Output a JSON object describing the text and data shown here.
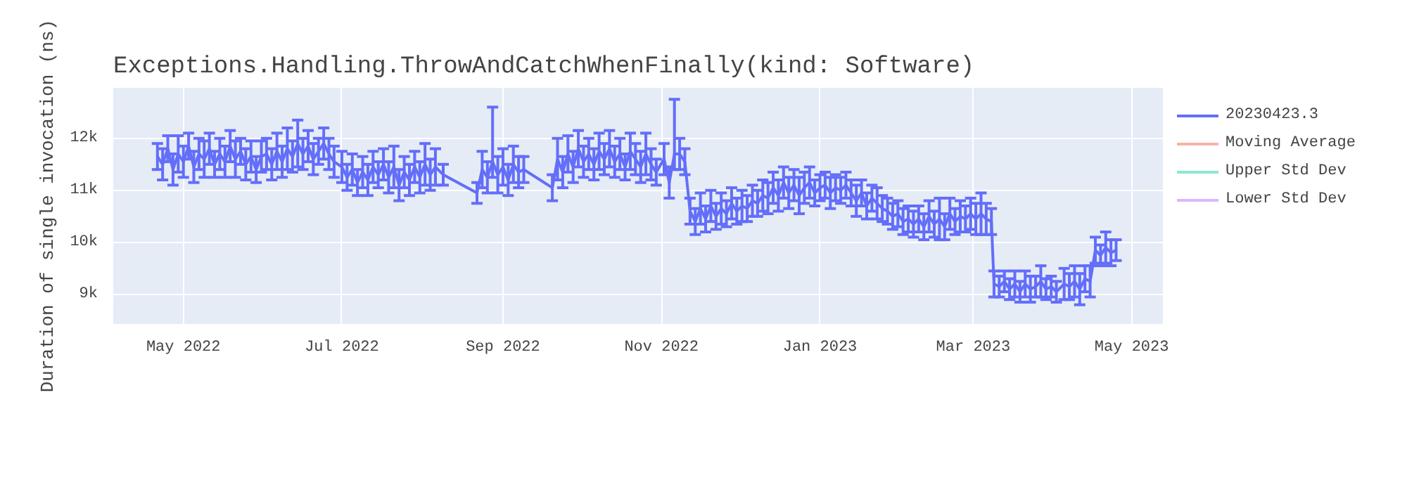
{
  "chart_data": {
    "type": "line",
    "title": "Exceptions.Handling.ThrowAndCatchWhenFinally(kind: Software)",
    "ylabel": "Duration of single invocation (ns)",
    "xlim": [
      "2022-04-04",
      "2023-05-13"
    ],
    "ylim": [
      8430,
      12970
    ],
    "xticks": [
      {
        "value": "2022-05-01",
        "label": "May 2022"
      },
      {
        "value": "2022-07-01",
        "label": "Jul 2022"
      },
      {
        "value": "2022-09-01",
        "label": "Sep 2022"
      },
      {
        "value": "2022-11-01",
        "label": "Nov 2022"
      },
      {
        "value": "2023-01-01",
        "label": "Jan 2023"
      },
      {
        "value": "2023-03-01",
        "label": "Mar 2023"
      },
      {
        "value": "2023-05-01",
        "label": "May 2023"
      }
    ],
    "yticks": [
      {
        "value": 9000,
        "label": "9k"
      },
      {
        "value": 10000,
        "label": "10k"
      },
      {
        "value": 11000,
        "label": "11k"
      },
      {
        "value": 12000,
        "label": "12k"
      }
    ],
    "grid": true,
    "legend": "right",
    "series": [
      {
        "name": "20230423.3",
        "color": "#636efa",
        "x": [
          "2022-04-21",
          "2022-04-23",
          "2022-04-25",
          "2022-04-27",
          "2022-04-29",
          "2022-05-01",
          "2022-05-03",
          "2022-05-05",
          "2022-05-07",
          "2022-05-09",
          "2022-05-11",
          "2022-05-13",
          "2022-05-15",
          "2022-05-17",
          "2022-05-19",
          "2022-05-21",
          "2022-05-23",
          "2022-05-25",
          "2022-05-27",
          "2022-05-29",
          "2022-05-31",
          "2022-06-02",
          "2022-06-04",
          "2022-06-06",
          "2022-06-08",
          "2022-06-10",
          "2022-06-12",
          "2022-06-14",
          "2022-06-16",
          "2022-06-18",
          "2022-06-20",
          "2022-06-22",
          "2022-06-24",
          "2022-06-26",
          "2022-06-28",
          "2022-07-01",
          "2022-07-03",
          "2022-07-05",
          "2022-07-07",
          "2022-07-09",
          "2022-07-11",
          "2022-07-13",
          "2022-07-15",
          "2022-07-17",
          "2022-07-19",
          "2022-07-21",
          "2022-07-23",
          "2022-07-25",
          "2022-07-27",
          "2022-07-29",
          "2022-07-31",
          "2022-08-02",
          "2022-08-04",
          "2022-08-06",
          "2022-08-09",
          "2022-08-22",
          "2022-08-24",
          "2022-08-26",
          "2022-08-28",
          "2022-08-30",
          "2022-09-01",
          "2022-09-03",
          "2022-09-05",
          "2022-09-07",
          "2022-09-09",
          "2022-09-20",
          "2022-09-22",
          "2022-09-24",
          "2022-09-26",
          "2022-09-28",
          "2022-09-30",
          "2022-10-02",
          "2022-10-04",
          "2022-10-06",
          "2022-10-08",
          "2022-10-10",
          "2022-10-12",
          "2022-10-14",
          "2022-10-16",
          "2022-10-18",
          "2022-10-20",
          "2022-10-22",
          "2022-10-24",
          "2022-10-26",
          "2022-10-28",
          "2022-10-30",
          "2022-11-02",
          "2022-11-04",
          "2022-11-06",
          "2022-11-08",
          "2022-11-10",
          "2022-11-12",
          "2022-11-14",
          "2022-11-16",
          "2022-11-18",
          "2022-11-20",
          "2022-11-22",
          "2022-11-24",
          "2022-11-26",
          "2022-11-28",
          "2022-11-30",
          "2022-12-02",
          "2022-12-04",
          "2022-12-06",
          "2022-12-08",
          "2022-12-10",
          "2022-12-12",
          "2022-12-14",
          "2022-12-16",
          "2022-12-18",
          "2022-12-20",
          "2022-12-22",
          "2022-12-24",
          "2022-12-26",
          "2022-12-28",
          "2022-12-30",
          "2023-01-01",
          "2023-01-03",
          "2023-01-05",
          "2023-01-07",
          "2023-01-09",
          "2023-01-11",
          "2023-01-13",
          "2023-01-15",
          "2023-01-17",
          "2023-01-19",
          "2023-01-21",
          "2023-01-23",
          "2023-01-25",
          "2023-01-27",
          "2023-01-29",
          "2023-01-31",
          "2023-02-02",
          "2023-02-04",
          "2023-02-06",
          "2023-02-08",
          "2023-02-10",
          "2023-02-12",
          "2023-02-14",
          "2023-02-16",
          "2023-02-18",
          "2023-02-20",
          "2023-02-22",
          "2023-02-24",
          "2023-02-26",
          "2023-02-28",
          "2023-03-02",
          "2023-03-04",
          "2023-03-06",
          "2023-03-08",
          "2023-03-09",
          "2023-03-11",
          "2023-03-13",
          "2023-03-15",
          "2023-03-17",
          "2023-03-19",
          "2023-03-21",
          "2023-03-23",
          "2023-03-25",
          "2023-03-27",
          "2023-03-29",
          "2023-03-31",
          "2023-04-02",
          "2023-04-05",
          "2023-04-07",
          "2023-04-09",
          "2023-04-11",
          "2023-04-13",
          "2023-04-15",
          "2023-04-17",
          "2023-04-19",
          "2023-04-21",
          "2023-04-23",
          "2023-04-25"
        ],
        "values": [
          11650,
          11500,
          11800,
          11400,
          11700,
          11550,
          11850,
          11450,
          11700,
          11600,
          11800,
          11500,
          11700,
          11550,
          11850,
          11600,
          11750,
          11500,
          11650,
          11400,
          11650,
          11700,
          11500,
          11750,
          11550,
          11800,
          11650,
          11900,
          11700,
          11850,
          11600,
          11750,
          11900,
          11700,
          11550,
          11450,
          11250,
          11400,
          11150,
          11350,
          11200,
          11450,
          11300,
          11500,
          11250,
          11450,
          11100,
          11350,
          11200,
          11450,
          11250,
          11500,
          11300,
          11450,
          11300,
          10950,
          11400,
          11250,
          11550,
          11300,
          11450,
          11200,
          11500,
          11350,
          11400,
          11050,
          11600,
          11350,
          11700,
          11450,
          11800,
          11550,
          11700,
          11500,
          11750,
          11600,
          11800,
          11550,
          11700,
          11450,
          11750,
          11600,
          11450,
          11700,
          11500,
          11350,
          11600,
          11150,
          11700,
          11700,
          11550,
          10600,
          10400,
          10650,
          10450,
          10700,
          10500,
          10650,
          10550,
          10750,
          10600,
          10700,
          10650,
          10800,
          10750,
          10900,
          10850,
          11050,
          10900,
          11150,
          10950,
          11100,
          10900,
          11050,
          11150,
          10950,
          11050,
          11100,
          10950,
          11050,
          11000,
          11100,
          10950,
          10800,
          10950,
          10700,
          10850,
          10750,
          10650,
          10600,
          10500,
          10550,
          10400,
          10450,
          10350,
          10450,
          10300,
          10500,
          10350,
          10450,
          10300,
          10550,
          10400,
          10500,
          10450,
          10550,
          10450,
          10550,
          10450,
          10400,
          9200,
          9150,
          9250,
          9100,
          9200,
          9050,
          9200,
          9100,
          9150,
          9250,
          9100,
          9150,
          9050,
          9200,
          9150,
          9250,
          9100,
          9300,
          9250,
          9850,
          9750,
          9900,
          9800,
          9850
        ],
        "errors": [
          250,
          300,
          250,
          300,
          350,
          300,
          250,
          300,
          300,
          350,
          300,
          250,
          300,
          300,
          300,
          350,
          250,
          300,
          300,
          250,
          300,
          300,
          300,
          350,
          300,
          400,
          300,
          450,
          300,
          300,
          300,
          250,
          300,
          300,
          300,
          300,
          250,
          300,
          250,
          300,
          300,
          300,
          250,
          300,
          300,
          400,
          300,
          300,
          300,
          300,
          300,
          400,
          300,
          350,
          200,
          200,
          350,
          300,
          [
            11250,
            12600
          ],
          350,
          350,
          300,
          350,
          300,
          250,
          250,
          400,
          300,
          350,
          300,
          350,
          300,
          300,
          300,
          350,
          300,
          350,
          300,
          300,
          250,
          350,
          300,
          300,
          400,
          300,
          250,
          300,
          300,
          [
            11400,
            12750
          ],
          300,
          250,
          250,
          250,
          300,
          250,
          300,
          250,
          300,
          250,
          300,
          250,
          300,
          250,
          300,
          250,
          300,
          300,
          300,
          300,
          300,
          300,
          300,
          350,
          300,
          300,
          250,
          250,
          250,
          300,
          250,
          250,
          250,
          250,
          300,
          250,
          250,
          250,
          300,
          250,
          250,
          250,
          250,
          250,
          250,
          250,
          250,
          250,
          300,
          250,
          400,
          250,
          300,
          250,
          300,
          250,
          300,
          300,
          400,
          300,
          250,
          250,
          200,
          200,
          200,
          250,
          200,
          250,
          250,
          200,
          300,
          200,
          200,
          200,
          300,
          250,
          300,
          300,
          250,
          300,
          250,
          200,
          300,
          250,
          200
        ]
      },
      {
        "name": "Moving Average",
        "color": "#ef553b"
      },
      {
        "name": "Upper Std Dev",
        "color": "#00cc96"
      },
      {
        "name": "Lower Std Dev",
        "color": "#ab63fa"
      }
    ]
  }
}
